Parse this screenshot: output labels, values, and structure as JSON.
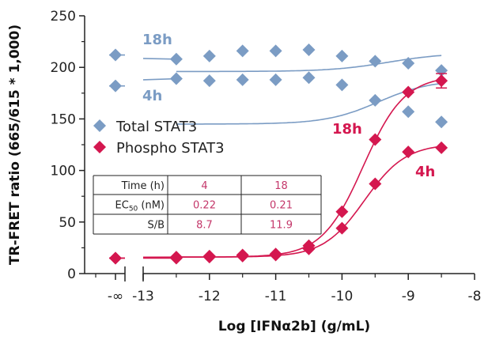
{
  "chart_data": {
    "type": "scatter",
    "xlabel": "Log [IFNα2b] (g/mL)",
    "ylabel": "TR-FRET ratio (665/615 * 1,000)",
    "xlim": [
      -13,
      -8
    ],
    "ylim": [
      0,
      250
    ],
    "x_ticks": [
      "-∞",
      "-13",
      "-12",
      "-11",
      "-10",
      "-9",
      "-8"
    ],
    "y_ticks": [
      "0",
      "50",
      "100",
      "150",
      "200",
      "250"
    ],
    "x_axis_break": "between -∞ and -13",
    "legend": {
      "position": "left-middle",
      "items": [
        "Total STAT3",
        "Phospho STAT3"
      ]
    },
    "colors": {
      "total": "#7b9cc4",
      "phospho": "#d4174f",
      "table_text": "#c4376a"
    },
    "series": [
      {
        "group": "Total STAT3",
        "name": "18h",
        "color": "#7b9cc4",
        "marker": "diamond",
        "blank": 212,
        "x": [
          -12.5,
          -12,
          -11.5,
          -11,
          -10.5,
          -10,
          -9.5,
          -9,
          -8.5
        ],
        "y": [
          208,
          211,
          216,
          216,
          217,
          211,
          206,
          204,
          197
        ]
      },
      {
        "group": "Total STAT3",
        "name": "4h",
        "color": "#7b9cc4",
        "marker": "diamond",
        "blank": 182,
        "x": [
          -12.5,
          -12,
          -11.5,
          -11,
          -10.5,
          -10,
          -9.5,
          -9,
          -8.5
        ],
        "y": [
          189,
          187,
          188,
          188,
          190,
          183,
          168,
          157,
          147
        ]
      },
      {
        "group": "Phospho STAT3",
        "name": "18h",
        "color": "#d4174f",
        "marker": "diamond",
        "blank": 15,
        "x": [
          -12.5,
          -12,
          -11.5,
          -11,
          -10.5,
          -10,
          -9.5,
          -9,
          -8.5
        ],
        "y": [
          16,
          17,
          18,
          19,
          27,
          60,
          130,
          176,
          187
        ],
        "error_bar": {
          "x": -8.5,
          "y": 187,
          "err": 7
        }
      },
      {
        "group": "Phospho STAT3",
        "name": "4h",
        "color": "#d4174f",
        "marker": "diamond",
        "blank": 15,
        "x": [
          -12.5,
          -12,
          -11.5,
          -11,
          -10.5,
          -10,
          -9.5,
          -9,
          -8.5
        ],
        "y": [
          15,
          16,
          17,
          18,
          24,
          44,
          87,
          118,
          122
        ]
      }
    ],
    "fits": [
      {
        "series": "Total 18h",
        "bottom": 196,
        "top": 214,
        "logEC50": -9.3,
        "hill": 1.0,
        "color": "#7b9cc4"
      },
      {
        "series": "Total 4h",
        "bottom": 145,
        "top": 188,
        "logEC50": -9.45,
        "hill": 1.1,
        "color": "#7b9cc4"
      },
      {
        "series": "Phospho 18h",
        "bottom": 16,
        "top": 192,
        "logEC50": -9.68,
        "hill": 1.4,
        "color": "#d4174f"
      },
      {
        "series": "Phospho 4h",
        "bottom": 16,
        "top": 126,
        "logEC50": -9.66,
        "hill": 1.4,
        "color": "#d4174f"
      }
    ],
    "series_labels": {
      "total_18h": "18h",
      "total_4h": "4h",
      "phospho_18h": "18h",
      "phospho_4h": "4h"
    },
    "table": {
      "rows": [
        {
          "label": "Time (h)",
          "values": [
            "4",
            "18"
          ]
        },
        {
          "label_main": "EC",
          "label_sub": "50",
          "label_tail": " (nM)",
          "values": [
            "0.22",
            "0.21"
          ]
        },
        {
          "label": "S/B",
          "values": [
            "8.7",
            "11.9"
          ]
        }
      ]
    }
  }
}
